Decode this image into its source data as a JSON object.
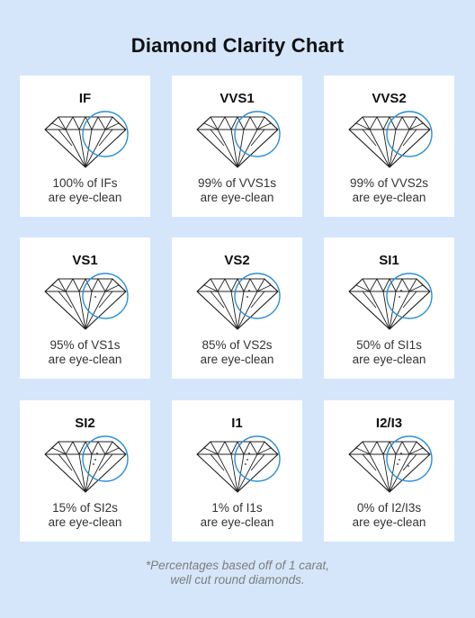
{
  "title": "Diamond Clarity Chart",
  "accent_color": "#2a8fd6",
  "cards": [
    {
      "grade": "IF",
      "line1": "100% of IFs",
      "line2": "are eye-clean",
      "dots": 0
    },
    {
      "grade": "VVS1",
      "line1": "99% of VVS1s",
      "line2": "are eye-clean",
      "dots": 0
    },
    {
      "grade": "VVS2",
      "line1": "99% of VVS2s",
      "line2": "are eye-clean",
      "dots": 0
    },
    {
      "grade": "VS1",
      "line1": "95% of VS1s",
      "line2": "are eye-clean",
      "dots": 1
    },
    {
      "grade": "VS2",
      "line1": "85% of VS2s",
      "line2": "are eye-clean",
      "dots": 2
    },
    {
      "grade": "SI1",
      "line1": "50% of SI1s",
      "line2": "are eye-clean",
      "dots": 2
    },
    {
      "grade": "SI2",
      "line1": "15% of SI2s",
      "line2": "are eye-clean",
      "dots": 3
    },
    {
      "grade": "I1",
      "line1": "1% of I1s",
      "line2": "are eye-clean",
      "dots": 3
    },
    {
      "grade": "I2/I3",
      "line1": "0% of I2/I3s",
      "line2": "are eye-clean",
      "dots": 4
    }
  ],
  "footnote": {
    "line1": "*Percentages based off of 1 carat,",
    "line2": "well cut round diamonds."
  }
}
